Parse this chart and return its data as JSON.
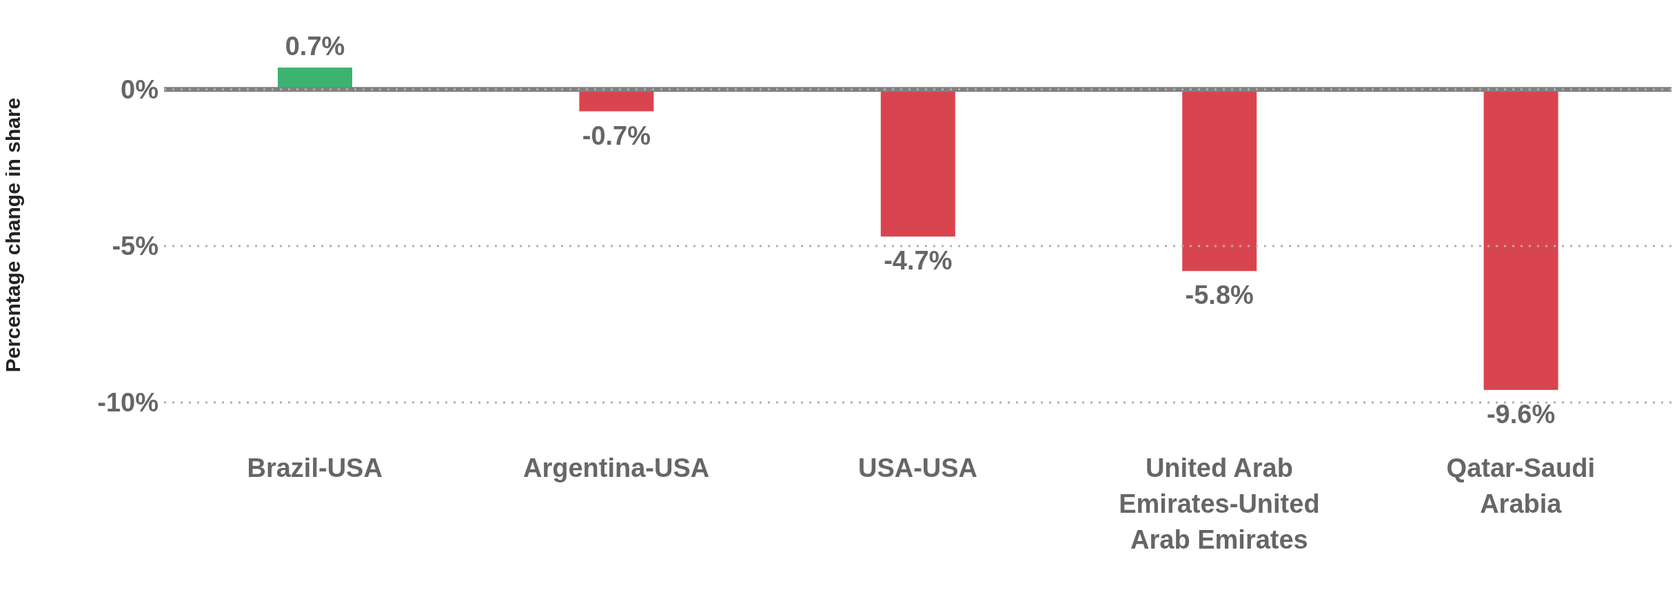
{
  "chart_data": {
    "type": "bar",
    "ylabel": "Percentage change in share",
    "categories": [
      "Brazil-USA",
      "Argentina-USA",
      "USA-USA",
      "United Arab Emirates-United Arab Emirates",
      "Qatar-Saudi Arabia"
    ],
    "values": [
      0.7,
      -0.7,
      -4.7,
      -5.8,
      -9.6
    ],
    "colors": [
      "#3cb371",
      "#d9454f",
      "#d9454f",
      "#d9454f",
      "#d9454f"
    ],
    "value_labels": [
      "0.7%",
      "-0.7%",
      "-4.7%",
      "-5.8%",
      "-9.6%"
    ],
    "ylim": [
      -10,
      0.7
    ],
    "yticks": [
      {
        "value": 0,
        "label": "0%"
      },
      {
        "value": -5,
        "label": "-5%"
      },
      {
        "value": -10,
        "label": "-10%"
      }
    ],
    "ref_lines": [
      {
        "axis": "y",
        "value": 0,
        "color": "#808080"
      }
    ],
    "grid": "y"
  }
}
